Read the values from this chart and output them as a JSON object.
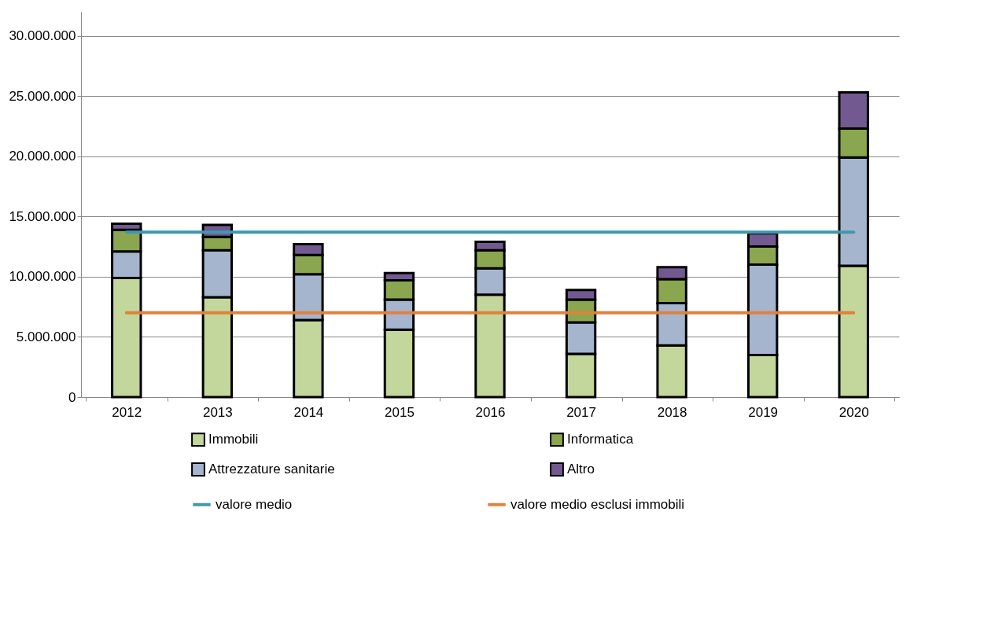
{
  "chart_data": {
    "type": "bar",
    "stacked": true,
    "categories": [
      "2012",
      "2013",
      "2014",
      "2015",
      "2016",
      "2017",
      "2018",
      "2019",
      "2020"
    ],
    "series": [
      {
        "name": "Immobili",
        "color": "#c3d69b",
        "values": [
          9900000,
          8300000,
          6400000,
          5600000,
          8500000,
          3600000,
          4300000,
          3500000,
          10900000
        ]
      },
      {
        "name": "Attrezzature sanitarie",
        "color": "#a5b5cd",
        "values": [
          2200000,
          3900000,
          3800000,
          2500000,
          2200000,
          2600000,
          3500000,
          7500000,
          9000000
        ]
      },
      {
        "name": "Informatica",
        "color": "#8aa64f",
        "values": [
          1800000,
          1100000,
          1600000,
          1600000,
          1500000,
          1900000,
          2000000,
          1500000,
          2400000
        ]
      },
      {
        "name": "Altro",
        "color": "#725a91",
        "values": [
          500000,
          1000000,
          900000,
          600000,
          700000,
          800000,
          1000000,
          1100000,
          3000000
        ]
      },
      {
        "name": "valore medio",
        "type": "line",
        "color": "#4198af",
        "values": [
          13700000,
          13700000,
          13700000,
          13700000,
          13700000,
          13700000,
          13700000,
          13700000,
          13700000
        ]
      },
      {
        "name": "valore medio esclusi immobili",
        "type": "line",
        "color": "#e0823d",
        "values": [
          7000000,
          7000000,
          7000000,
          7000000,
          7000000,
          7000000,
          7000000,
          7000000,
          7000000
        ]
      }
    ],
    "ylim": [
      0,
      32000000
    ],
    "yticks": [
      {
        "value": 0,
        "label": "0"
      },
      {
        "value": 5000000,
        "label": "5.000.000"
      },
      {
        "value": 10000000,
        "label": "10.000.000"
      },
      {
        "value": 15000000,
        "label": "15.000.000"
      },
      {
        "value": 20000000,
        "label": "20.000.000"
      },
      {
        "value": 25000000,
        "label": "25.000.000"
      },
      {
        "value": 30000000,
        "label": "30.000.000"
      }
    ],
    "grid": "y",
    "legend": "bottom"
  }
}
